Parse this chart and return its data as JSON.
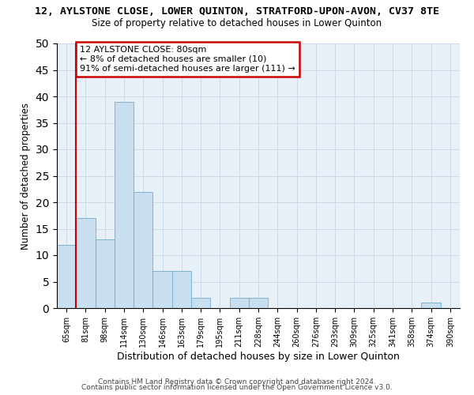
{
  "title_main": "12, AYLSTONE CLOSE, LOWER QUINTON, STRATFORD-UPON-AVON, CV37 8TE",
  "title_sub": "Size of property relative to detached houses in Lower Quinton",
  "xlabel": "Distribution of detached houses by size in Lower Quinton",
  "ylabel": "Number of detached properties",
  "bin_labels": [
    "65sqm",
    "81sqm",
    "98sqm",
    "114sqm",
    "130sqm",
    "146sqm",
    "163sqm",
    "179sqm",
    "195sqm",
    "211sqm",
    "228sqm",
    "244sqm",
    "260sqm",
    "276sqm",
    "293sqm",
    "309sqm",
    "325sqm",
    "341sqm",
    "358sqm",
    "374sqm",
    "390sqm"
  ],
  "bar_values": [
    12,
    17,
    13,
    39,
    22,
    7,
    7,
    2,
    0,
    2,
    2,
    0,
    0,
    0,
    0,
    0,
    0,
    0,
    0,
    1,
    0
  ],
  "bar_color": "#c8dff0",
  "bar_edge_color": "#7fb3d3",
  "ylim": [
    0,
    50
  ],
  "yticks": [
    0,
    5,
    10,
    15,
    20,
    25,
    30,
    35,
    40,
    45,
    50
  ],
  "vline_x": 1,
  "vline_color": "#cc0000",
  "annotation_title": "12 AYLSTONE CLOSE: 80sqm",
  "annotation_line1": "← 8% of detached houses are smaller (10)",
  "annotation_line2": "91% of semi-detached houses are larger (111) →",
  "annotation_box_color": "#ffffff",
  "annotation_box_edge": "#cc0000",
  "footer1": "Contains HM Land Registry data © Crown copyright and database right 2024.",
  "footer2": "Contains public sector information licensed under the Open Government Licence v3.0.",
  "bg_color": "#ffffff",
  "grid_color": "#ccd9ea"
}
